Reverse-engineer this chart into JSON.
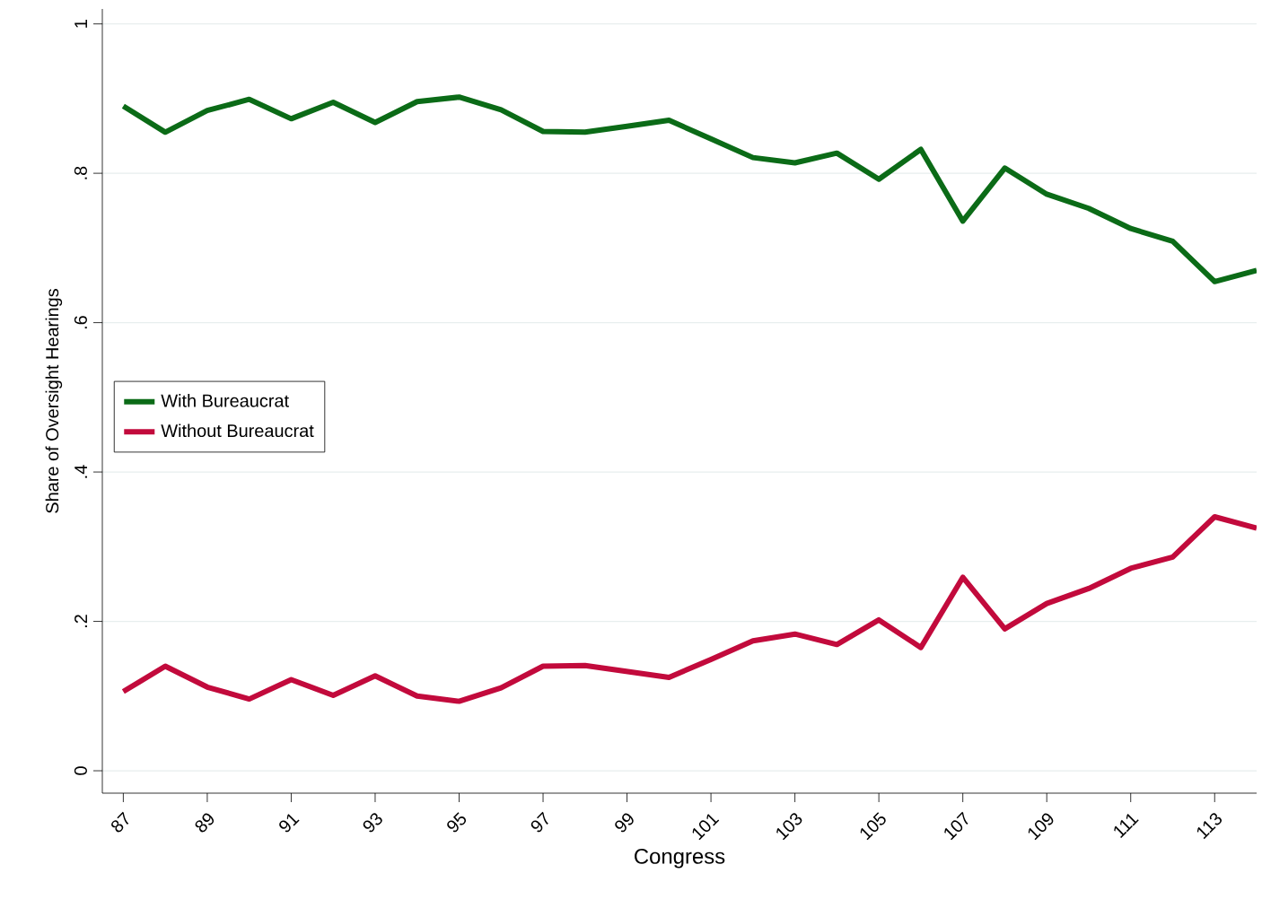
{
  "chart_data": {
    "type": "line",
    "xlabel": "Congress",
    "ylabel": "Share of Oversight Hearings",
    "x": [
      87,
      88,
      89,
      90,
      91,
      92,
      93,
      94,
      95,
      96,
      97,
      98,
      99,
      100,
      101,
      102,
      103,
      104,
      105,
      106,
      107,
      108,
      109,
      110,
      111,
      112,
      113,
      114
    ],
    "series": [
      {
        "name": "With Bureaucrat",
        "color": "#0b6b17",
        "values": [
          0.89,
          0.855,
          0.884,
          0.899,
          0.873,
          0.895,
          0.868,
          0.896,
          0.902,
          0.885,
          0.856,
          0.855,
          0.863,
          0.871,
          0.846,
          0.821,
          0.814,
          0.827,
          0.792,
          0.832,
          0.736,
          0.807,
          0.772,
          0.753,
          0.726,
          0.709,
          0.655,
          0.67
        ]
      },
      {
        "name": "Without Bureaucrat",
        "color": "#c20a3c",
        "values": [
          0.106,
          0.14,
          0.112,
          0.096,
          0.122,
          0.101,
          0.127,
          0.1,
          0.093,
          0.111,
          0.14,
          0.141,
          0.133,
          0.125,
          0.149,
          0.174,
          0.183,
          0.169,
          0.202,
          0.165,
          0.259,
          0.19,
          0.224,
          0.244,
          0.271,
          0.286,
          0.34,
          0.325
        ]
      }
    ],
    "xlim": [
      86.5,
      114
    ],
    "ylim": [
      -0.03,
      1.02
    ],
    "xticks": [
      87,
      89,
      91,
      93,
      95,
      97,
      99,
      101,
      103,
      105,
      107,
      109,
      111,
      113
    ],
    "yticks": [
      0,
      {
        "value": 0.2,
        "label": ".2"
      },
      {
        "value": 0.4,
        "label": ".4"
      },
      {
        "value": 0.6,
        "label": ".6"
      },
      {
        "value": 0.8,
        "label": ".8"
      },
      1
    ],
    "grid": "y",
    "legend": "left",
    "marker": "none",
    "line_style": "solid"
  }
}
